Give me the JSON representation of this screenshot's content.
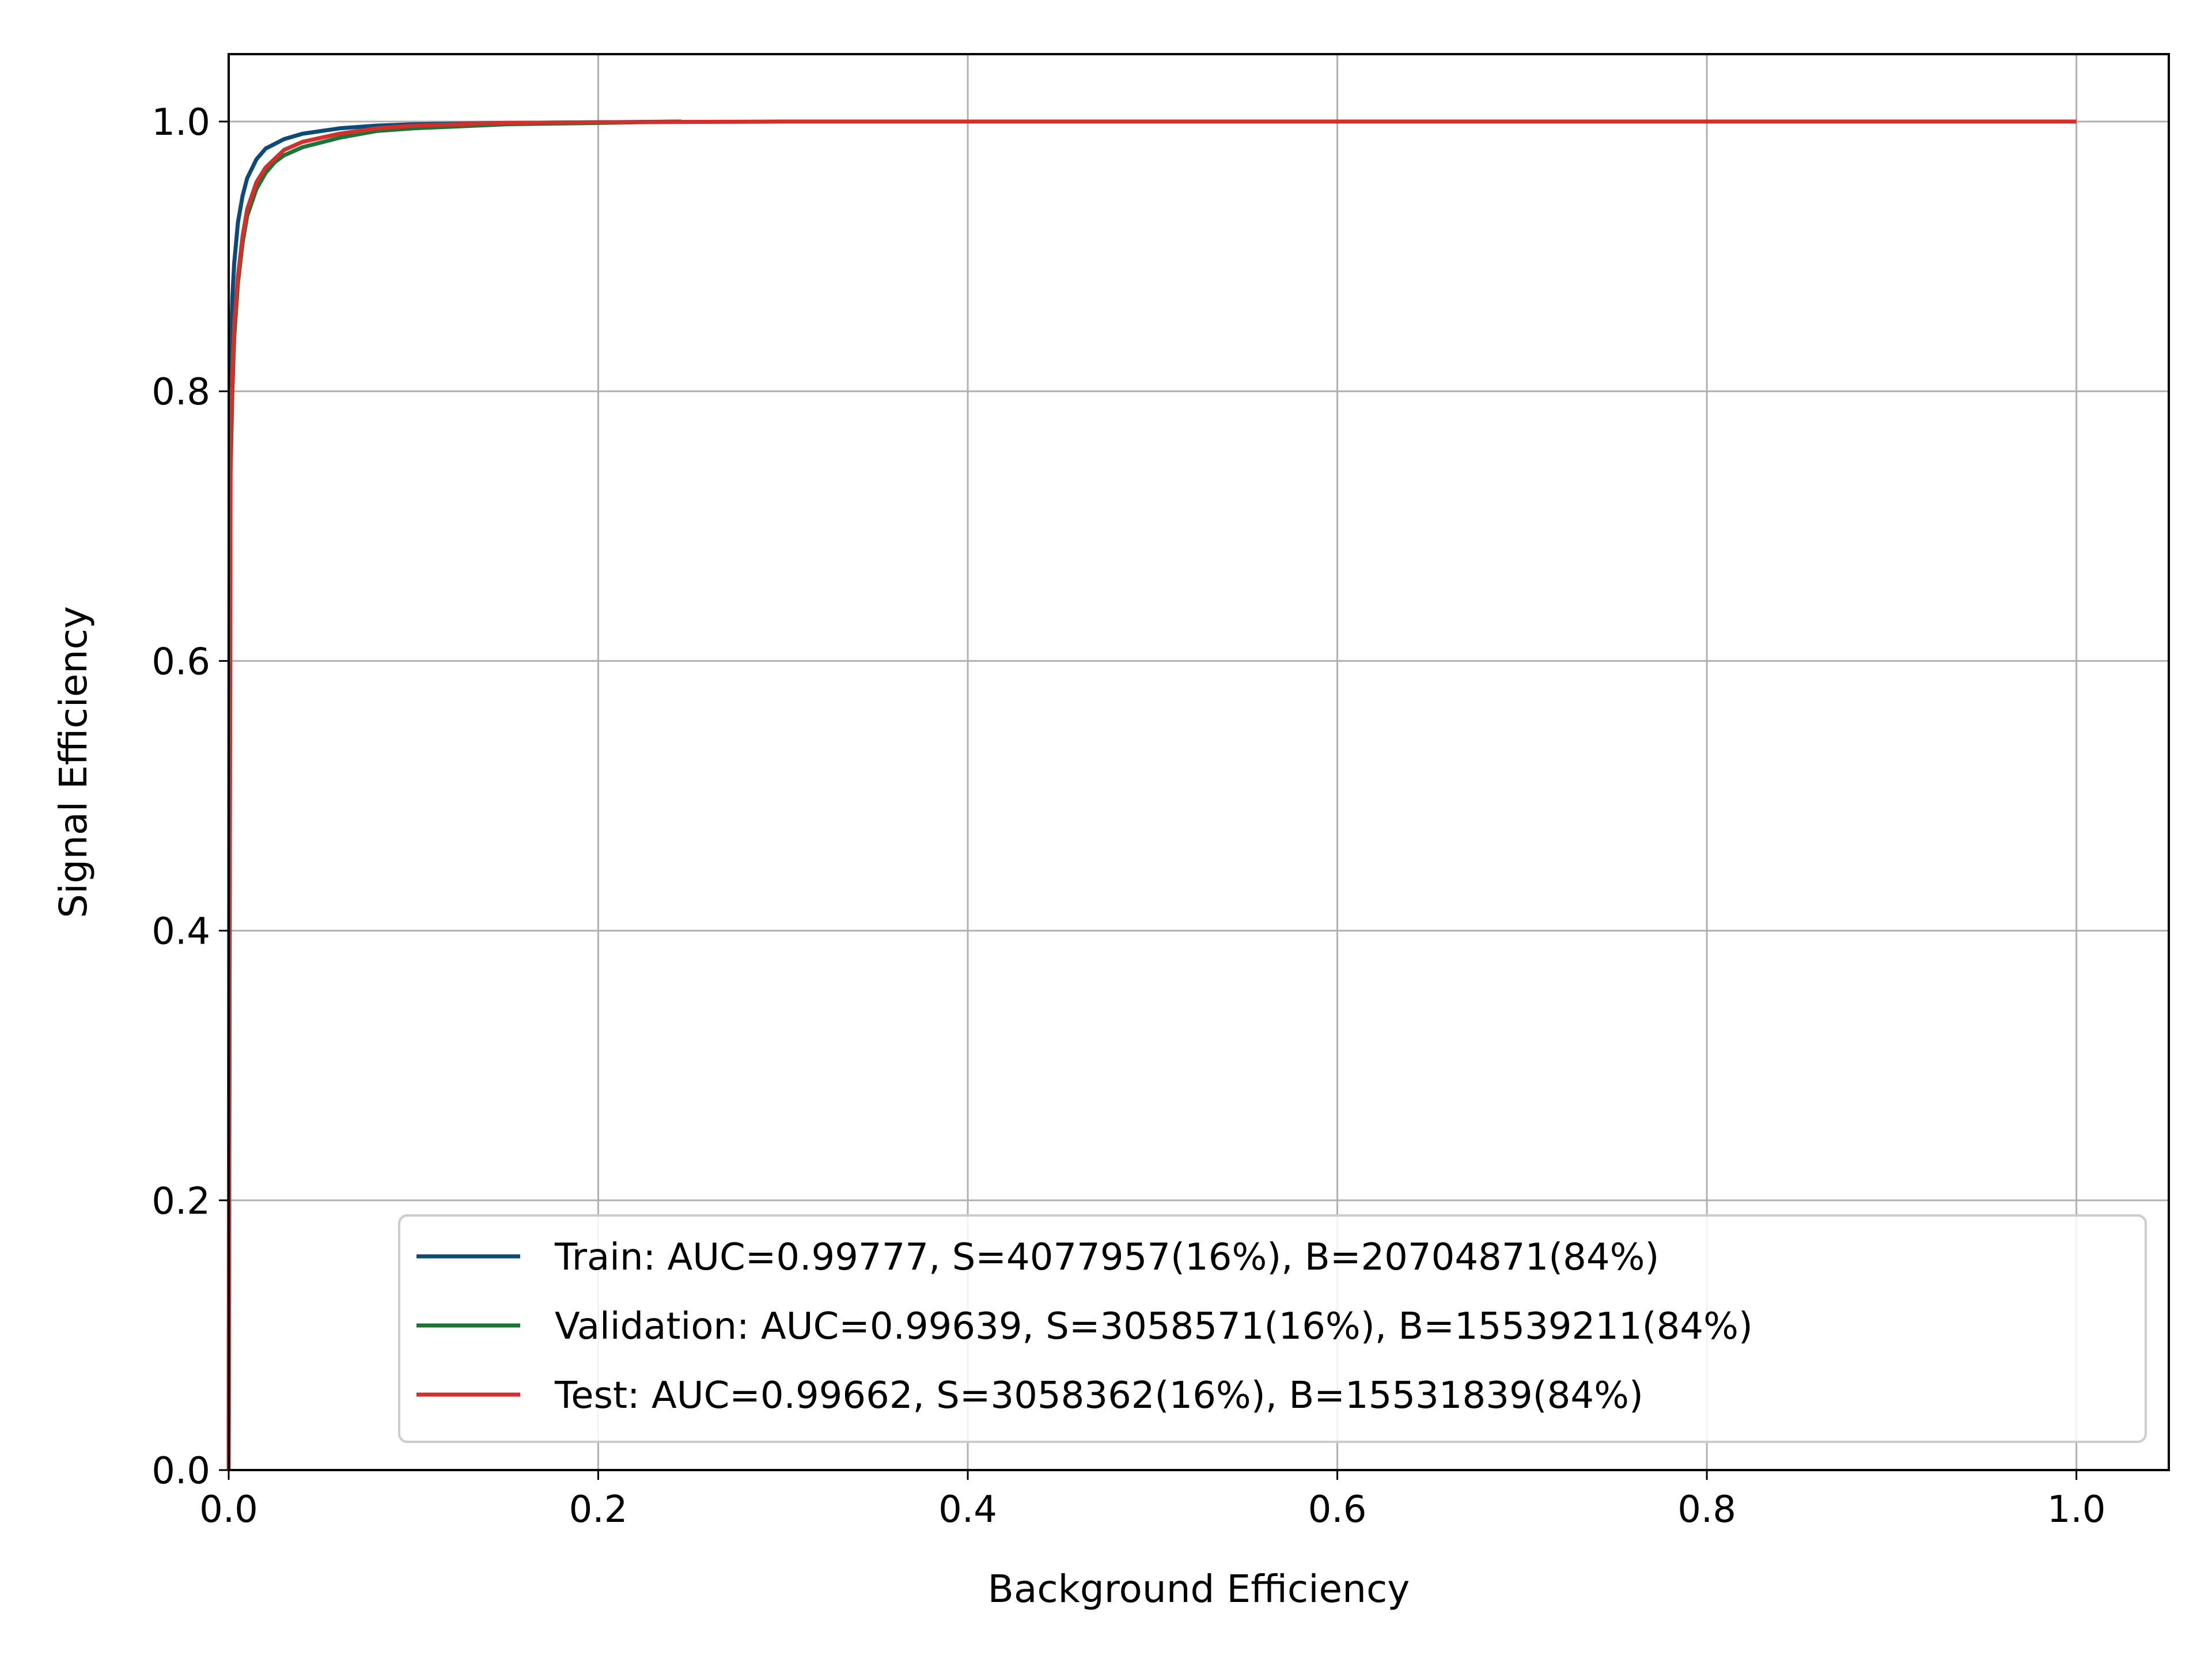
{
  "chart_data": {
    "type": "line",
    "title": "",
    "xlabel": "Background Efficiency",
    "ylabel": "Signal Efficiency",
    "xlim": [
      0.0,
      1.05
    ],
    "ylim": [
      0.0,
      1.05
    ],
    "xticks": [
      "0.0",
      "0.2",
      "0.4",
      "0.6",
      "0.8",
      "1.0"
    ],
    "yticks": [
      "0.0",
      "0.2",
      "0.4",
      "0.6",
      "0.8",
      "1.0"
    ],
    "grid": true,
    "legend_position": "lower-right",
    "series": [
      {
        "name": "Train: AUC=0.99777, S=4077957(16%), B=20704871(84%)",
        "color": "#0d4a77",
        "x": [
          0.0,
          0.0005,
          0.001,
          0.002,
          0.003,
          0.005,
          0.0075,
          0.01,
          0.015,
          0.02,
          0.03,
          0.04,
          0.06,
          0.08,
          0.1,
          0.15,
          0.2,
          0.245
        ],
        "y": [
          0.0,
          0.74,
          0.82,
          0.87,
          0.895,
          0.925,
          0.945,
          0.958,
          0.972,
          0.98,
          0.987,
          0.991,
          0.995,
          0.997,
          0.998,
          0.999,
          0.9995,
          1.0
        ]
      },
      {
        "name": "Validation: AUC=0.99639, S=3058571(16%), B=15539211(84%)",
        "color": "#1e7435",
        "x": [
          0.0,
          0.001,
          0.002,
          0.003,
          0.005,
          0.0075,
          0.01,
          0.015,
          0.02,
          0.025,
          0.03,
          0.04,
          0.06,
          0.08,
          0.1,
          0.15,
          0.2,
          0.245
        ],
        "y": [
          0.0,
          0.74,
          0.8,
          0.84,
          0.88,
          0.91,
          0.93,
          0.95,
          0.962,
          0.97,
          0.975,
          0.981,
          0.988,
          0.993,
          0.995,
          0.998,
          0.999,
          1.0
        ]
      },
      {
        "name": "Test: AUC=0.99662, S=3058362(16%), B=15531839(84%)",
        "color": "#d3302b",
        "x": [
          0.0,
          0.001,
          0.002,
          0.003,
          0.005,
          0.0075,
          0.01,
          0.015,
          0.02,
          0.03,
          0.04,
          0.06,
          0.08,
          0.1,
          0.15,
          0.2,
          0.3,
          0.5,
          0.8,
          1.0
        ],
        "y": [
          0.0,
          0.76,
          0.81,
          0.85,
          0.885,
          0.915,
          0.935,
          0.955,
          0.966,
          0.979,
          0.985,
          0.991,
          0.995,
          0.997,
          0.999,
          0.9995,
          1.0,
          1.0,
          1.0,
          1.0
        ]
      }
    ]
  }
}
